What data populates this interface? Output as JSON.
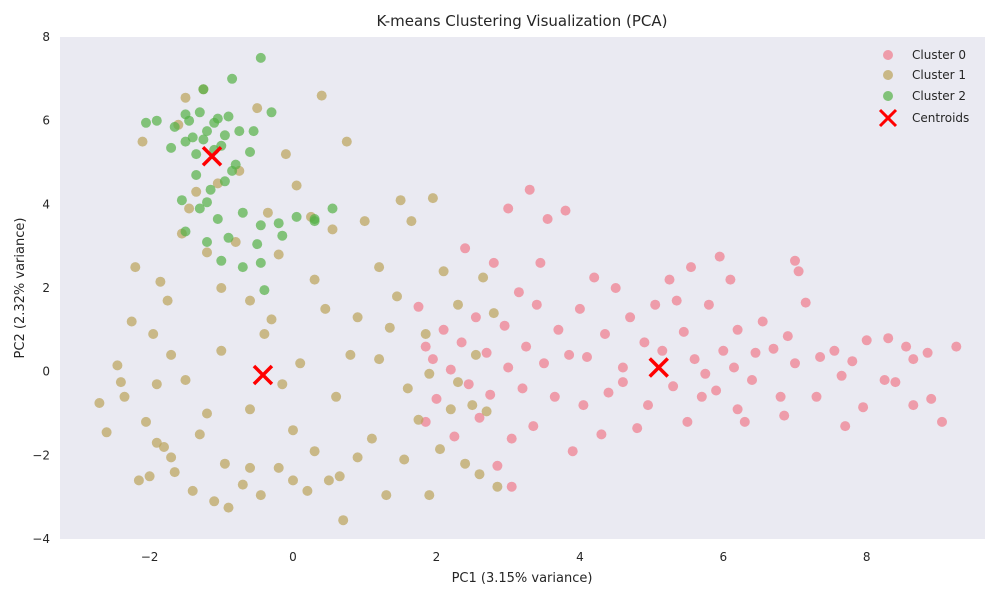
{
  "chart_data": {
    "type": "scatter",
    "title": "K-means Clustering Visualization (PCA)",
    "xlabel": "PC1 (3.15% variance)",
    "ylabel": "PC2 (2.32% variance)",
    "xlim": [
      -3.25,
      9.65
    ],
    "ylim": [
      -4.0,
      8.0
    ],
    "xticks": [
      -2,
      0,
      2,
      4,
      6,
      8
    ],
    "yticks": [
      -4,
      -2,
      0,
      2,
      4,
      6,
      8
    ],
    "xtick_labels": [
      "−2",
      "0",
      "2",
      "4",
      "6",
      "8"
    ],
    "ytick_labels": [
      "−4",
      "−2",
      "0",
      "2",
      "4",
      "6",
      "8"
    ],
    "grid": false,
    "legend_position": "top-right",
    "background": "#eaeaf2",
    "series": [
      {
        "name": "Cluster 0",
        "color": "#f07a8c",
        "marker": "circle",
        "points": [
          [
            9.25,
            0.6
          ],
          [
            9.05,
            -1.2
          ],
          [
            8.9,
            -0.65
          ],
          [
            8.85,
            0.45
          ],
          [
            8.65,
            -0.8
          ],
          [
            8.65,
            0.3
          ],
          [
            8.55,
            0.6
          ],
          [
            8.4,
            -0.25
          ],
          [
            8.3,
            0.8
          ],
          [
            8.0,
            0.75
          ],
          [
            7.95,
            -0.85
          ],
          [
            7.8,
            0.25
          ],
          [
            7.7,
            -1.3
          ],
          [
            7.55,
            0.5
          ],
          [
            7.35,
            0.35
          ],
          [
            7.3,
            -0.6
          ],
          [
            7.15,
            1.65
          ],
          [
            7.05,
            2.4
          ],
          [
            7.0,
            2.65
          ],
          [
            7.0,
            0.2
          ],
          [
            6.9,
            0.85
          ],
          [
            6.85,
            -1.05
          ],
          [
            6.8,
            -0.6
          ],
          [
            6.7,
            0.55
          ],
          [
            6.55,
            1.2
          ],
          [
            6.45,
            0.45
          ],
          [
            6.4,
            -0.2
          ],
          [
            6.3,
            -1.2
          ],
          [
            6.2,
            1.0
          ],
          [
            6.15,
            0.1
          ],
          [
            6.1,
            2.2
          ],
          [
            6.0,
            0.5
          ],
          [
            5.95,
            2.75
          ],
          [
            5.9,
            -0.45
          ],
          [
            5.8,
            1.6
          ],
          [
            5.7,
            -0.6
          ],
          [
            5.6,
            0.3
          ],
          [
            5.55,
            2.5
          ],
          [
            5.5,
            -1.2
          ],
          [
            5.45,
            0.95
          ],
          [
            5.35,
            1.7
          ],
          [
            5.3,
            -0.35
          ],
          [
            5.25,
            2.2
          ],
          [
            5.15,
            0.5
          ],
          [
            5.05,
            1.6
          ],
          [
            4.95,
            -0.8
          ],
          [
            4.9,
            0.7
          ],
          [
            4.8,
            -1.35
          ],
          [
            4.7,
            1.3
          ],
          [
            4.6,
            0.1
          ],
          [
            4.5,
            2.0
          ],
          [
            4.4,
            -0.5
          ],
          [
            4.35,
            0.9
          ],
          [
            4.3,
            -1.5
          ],
          [
            4.2,
            2.25
          ],
          [
            4.1,
            0.35
          ],
          [
            4.05,
            -0.8
          ],
          [
            4.0,
            1.5
          ],
          [
            3.9,
            -1.9
          ],
          [
            3.85,
            0.4
          ],
          [
            3.8,
            3.85
          ],
          [
            3.7,
            1.0
          ],
          [
            3.65,
            -0.6
          ],
          [
            3.55,
            3.65
          ],
          [
            3.5,
            0.2
          ],
          [
            3.45,
            2.6
          ],
          [
            3.4,
            1.6
          ],
          [
            3.35,
            -1.3
          ],
          [
            3.3,
            4.35
          ],
          [
            3.25,
            0.6
          ],
          [
            3.2,
            -0.4
          ],
          [
            3.15,
            1.9
          ],
          [
            3.05,
            -1.6
          ],
          [
            3.0,
            3.9
          ],
          [
            3.0,
            0.1
          ],
          [
            2.95,
            1.1
          ],
          [
            2.85,
            -2.25
          ],
          [
            2.8,
            2.6
          ],
          [
            2.75,
            -0.55
          ],
          [
            2.7,
            0.45
          ],
          [
            2.6,
            -1.1
          ],
          [
            2.55,
            1.3
          ],
          [
            2.45,
            -0.3
          ],
          [
            2.4,
            2.95
          ],
          [
            2.35,
            0.7
          ],
          [
            2.25,
            -1.55
          ],
          [
            2.2,
            0.05
          ],
          [
            2.1,
            1.0
          ],
          [
            2.0,
            -0.65
          ],
          [
            1.95,
            0.3
          ],
          [
            1.85,
            -1.2
          ],
          [
            1.85,
            0.6
          ],
          [
            1.75,
            1.55
          ],
          [
            3.05,
            -2.75
          ],
          [
            6.2,
            -0.9
          ],
          [
            7.65,
            -0.1
          ],
          [
            8.25,
            -0.2
          ],
          [
            5.75,
            -0.05
          ],
          [
            4.6,
            -0.25
          ]
        ]
      },
      {
        "name": "Cluster 1",
        "color": "#bba35a",
        "marker": "circle",
        "points": [
          [
            -2.7,
            -0.75
          ],
          [
            -2.6,
            -1.45
          ],
          [
            -2.45,
            0.15
          ],
          [
            -2.35,
            -0.6
          ],
          [
            -2.25,
            1.2
          ],
          [
            -2.2,
            2.5
          ],
          [
            -2.15,
            -2.6
          ],
          [
            -2.05,
            -1.2
          ],
          [
            -1.95,
            0.9
          ],
          [
            -1.9,
            -0.3
          ],
          [
            -1.85,
            2.15
          ],
          [
            -1.8,
            -1.8
          ],
          [
            -1.75,
            1.7
          ],
          [
            -1.7,
            0.4
          ],
          [
            -1.65,
            -2.4
          ],
          [
            -1.55,
            3.3
          ],
          [
            -1.5,
            6.55
          ],
          [
            -1.4,
            -2.85
          ],
          [
            -1.35,
            4.3
          ],
          [
            -1.3,
            -1.5
          ],
          [
            -1.25,
            6.75
          ],
          [
            -1.2,
            2.85
          ],
          [
            -1.1,
            -3.1
          ],
          [
            -1.05,
            4.5
          ],
          [
            -0.95,
            -2.2
          ],
          [
            -0.9,
            -3.25
          ],
          [
            -0.8,
            3.1
          ],
          [
            -0.7,
            -2.7
          ],
          [
            -0.6,
            1.7
          ],
          [
            -0.5,
            6.3
          ],
          [
            -0.45,
            -2.95
          ],
          [
            -0.35,
            3.8
          ],
          [
            -0.2,
            -2.3
          ],
          [
            -0.1,
            5.2
          ],
          [
            0.0,
            -1.4
          ],
          [
            0.05,
            4.45
          ],
          [
            0.2,
            -2.85
          ],
          [
            0.3,
            2.2
          ],
          [
            0.4,
            6.6
          ],
          [
            0.5,
            -2.6
          ],
          [
            0.55,
            3.4
          ],
          [
            0.7,
            -3.55
          ],
          [
            0.75,
            5.5
          ],
          [
            0.9,
            -2.05
          ],
          [
            1.0,
            3.6
          ],
          [
            1.1,
            -1.6
          ],
          [
            1.2,
            2.5
          ],
          [
            1.3,
            -2.95
          ],
          [
            1.45,
            1.8
          ],
          [
            1.55,
            -2.1
          ],
          [
            1.65,
            3.6
          ],
          [
            1.75,
            -1.15
          ],
          [
            1.85,
            0.9
          ],
          [
            1.9,
            -2.95
          ],
          [
            1.95,
            4.15
          ],
          [
            2.05,
            -1.85
          ],
          [
            2.1,
            2.4
          ],
          [
            2.2,
            -0.9
          ],
          [
            2.3,
            1.6
          ],
          [
            2.4,
            -2.2
          ],
          [
            2.55,
            0.4
          ],
          [
            2.6,
            -2.45
          ],
          [
            2.65,
            2.25
          ],
          [
            2.7,
            -0.95
          ],
          [
            2.8,
            1.4
          ],
          [
            2.85,
            -2.75
          ],
          [
            -2.1,
            5.5
          ],
          [
            -1.6,
            5.9
          ],
          [
            -1.0,
            0.5
          ],
          [
            -0.4,
            0.9
          ],
          [
            0.1,
            0.2
          ],
          [
            0.6,
            -0.6
          ],
          [
            1.2,
            0.3
          ],
          [
            -0.6,
            -0.9
          ],
          [
            -1.5,
            -0.2
          ],
          [
            1.6,
            -0.4
          ],
          [
            0.9,
            1.3
          ],
          [
            -0.2,
            2.8
          ],
          [
            1.5,
            4.1
          ],
          [
            -1.45,
            3.9
          ],
          [
            -0.3,
            1.25
          ],
          [
            0.3,
            -1.9
          ],
          [
            -2.4,
            -0.25
          ],
          [
            -1.9,
            -1.7
          ],
          [
            0.8,
            0.4
          ],
          [
            1.9,
            -0.05
          ],
          [
            2.3,
            -0.25
          ],
          [
            -0.75,
            4.8
          ],
          [
            -1.2,
            -1.0
          ],
          [
            0.25,
            3.7
          ],
          [
            -1.0,
            2.0
          ],
          [
            0.45,
            1.5
          ],
          [
            1.35,
            1.05
          ],
          [
            -0.15,
            -0.3
          ],
          [
            2.5,
            -0.8
          ],
          [
            -2.0,
            -2.5
          ],
          [
            -1.7,
            -2.05
          ],
          [
            -0.6,
            -2.3
          ],
          [
            0.0,
            -2.6
          ],
          [
            0.65,
            -2.5
          ]
        ]
      },
      {
        "name": "Cluster 2",
        "color": "#54b046",
        "marker": "circle",
        "points": [
          [
            -0.45,
            7.5
          ],
          [
            -0.85,
            7.0
          ],
          [
            -1.25,
            6.75
          ],
          [
            -1.3,
            6.2
          ],
          [
            -1.45,
            6.0
          ],
          [
            -1.5,
            5.5
          ],
          [
            -1.2,
            5.75
          ],
          [
            -1.1,
            5.95
          ],
          [
            -1.0,
            5.4
          ],
          [
            -0.9,
            6.1
          ],
          [
            -0.75,
            5.75
          ],
          [
            -0.6,
            5.25
          ],
          [
            -1.35,
            4.7
          ],
          [
            -1.15,
            4.35
          ],
          [
            -0.95,
            4.55
          ],
          [
            -0.8,
            4.95
          ],
          [
            -1.55,
            4.1
          ],
          [
            -1.3,
            3.9
          ],
          [
            -1.05,
            3.65
          ],
          [
            -0.7,
            3.8
          ],
          [
            -0.45,
            3.5
          ],
          [
            -0.2,
            3.55
          ],
          [
            0.05,
            3.7
          ],
          [
            0.3,
            3.6
          ],
          [
            0.55,
            3.9
          ],
          [
            -0.9,
            3.2
          ],
          [
            -1.2,
            3.1
          ],
          [
            -1.0,
            2.65
          ],
          [
            -0.7,
            2.5
          ],
          [
            -0.45,
            2.6
          ],
          [
            -0.4,
            1.95
          ],
          [
            -2.05,
            5.95
          ],
          [
            -1.9,
            6.0
          ],
          [
            -1.65,
            5.85
          ],
          [
            -1.5,
            6.15
          ],
          [
            -1.7,
            5.35
          ],
          [
            -1.35,
            5.2
          ],
          [
            -0.95,
            5.65
          ],
          [
            -1.25,
            5.55
          ],
          [
            -1.1,
            5.3
          ],
          [
            -0.55,
            5.75
          ],
          [
            0.3,
            3.65
          ],
          [
            -0.3,
            6.2
          ],
          [
            -1.05,
            6.05
          ],
          [
            -1.4,
            5.6
          ],
          [
            -0.85,
            4.8
          ],
          [
            -1.2,
            4.05
          ],
          [
            -0.15,
            3.25
          ],
          [
            -0.5,
            3.05
          ],
          [
            -1.5,
            3.35
          ]
        ]
      }
    ],
    "centroids": {
      "name": "Centroids",
      "color": "#ff0000",
      "marker": "x",
      "points": [
        [
          5.1,
          0.1
        ],
        [
          -0.42,
          -0.08
        ],
        [
          -1.13,
          5.15
        ]
      ]
    }
  }
}
